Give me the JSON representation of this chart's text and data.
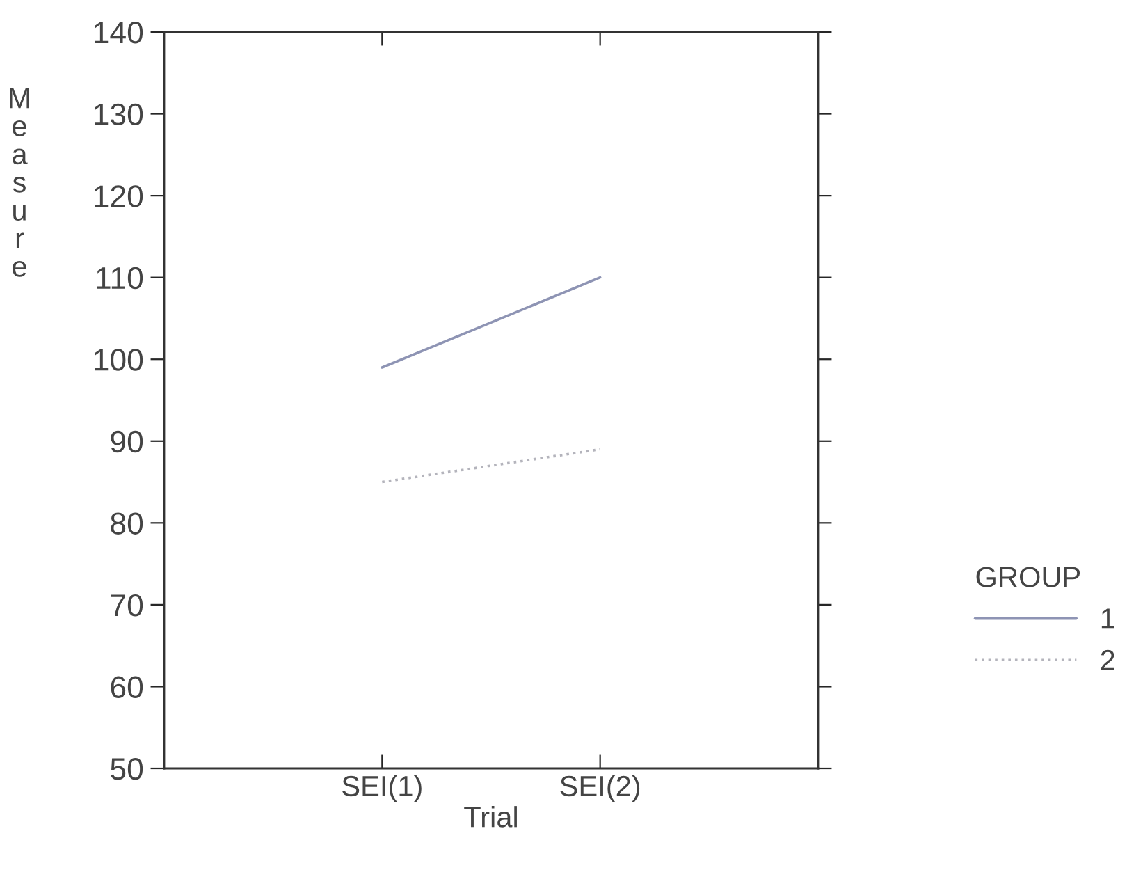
{
  "chart_data": {
    "type": "line",
    "xlabel": "Trial",
    "ylabel": "Measure",
    "legend_title": "GROUP",
    "categories": [
      "SEI(1)",
      "SEI(2)"
    ],
    "series": [
      {
        "name": "1",
        "color": "#8e94b4",
        "values": [
          99,
          110
        ],
        "line_style": "solid"
      },
      {
        "name": "2",
        "color": "#b4b4bc",
        "values": [
          85,
          89
        ],
        "line_style": "dotted"
      }
    ],
    "ylim": [
      50,
      140
    ],
    "yticks": [
      50,
      60,
      70,
      80,
      90,
      100,
      110,
      120,
      130,
      140
    ],
    "grid": false,
    "legend": "right",
    "marker": "none"
  }
}
